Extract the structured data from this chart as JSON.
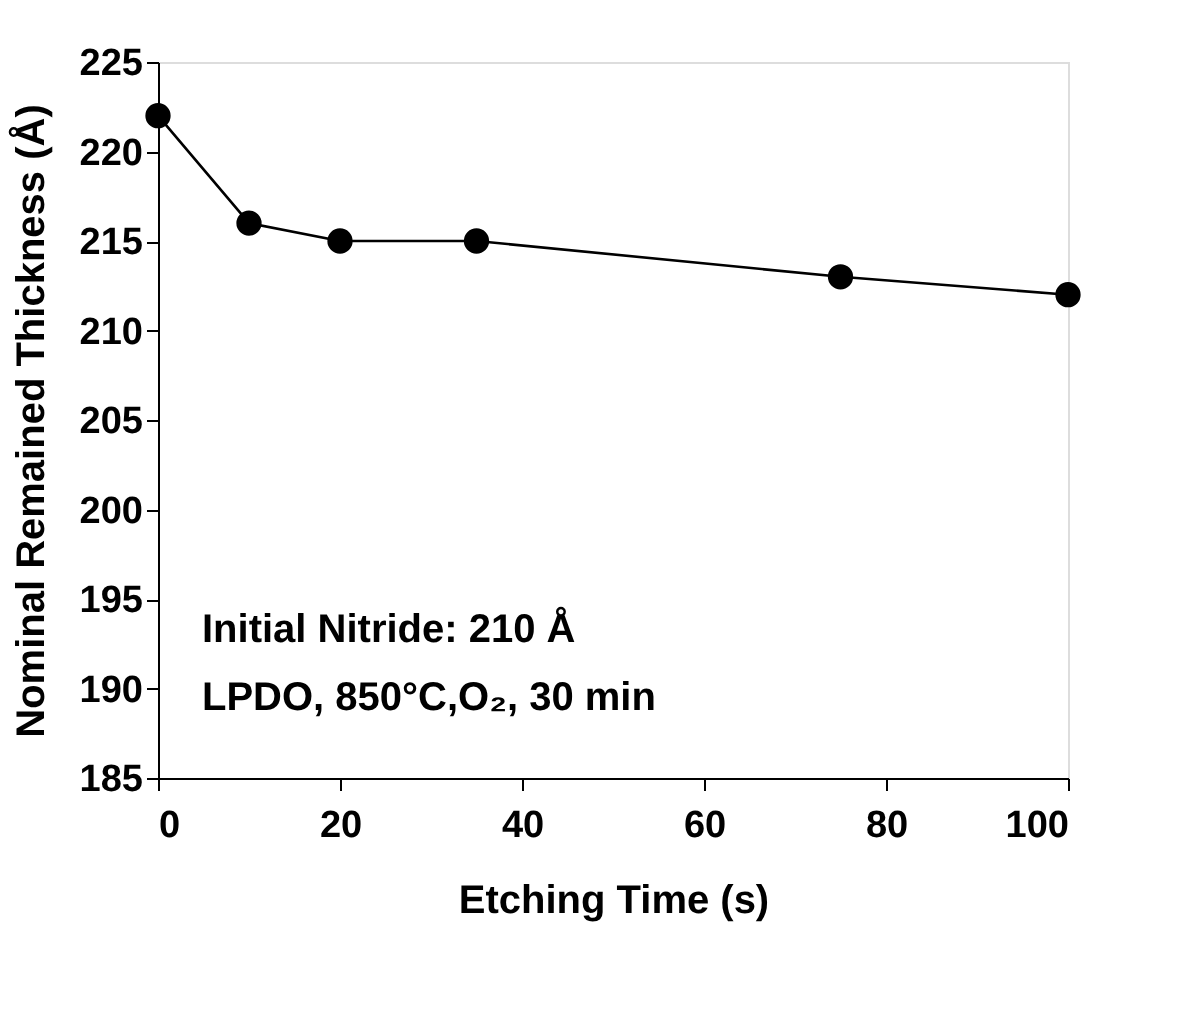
{
  "chart_data": {
    "type": "line",
    "xlabel": "Etching Time (s)",
    "ylabel": "Nominal Remained Thickness (Å)",
    "x": [
      0,
      10,
      20,
      35,
      75,
      100
    ],
    "series": [
      {
        "color": "#000000",
        "values": [
          222,
          216,
          215,
          215,
          213,
          212
        ]
      }
    ],
    "xlim": [
      0,
      100
    ],
    "xticks": [
      0,
      20,
      40,
      60,
      80,
      100
    ],
    "ylim": [
      185,
      225
    ],
    "yticks": [
      185,
      190,
      195,
      200,
      205,
      210,
      215,
      220,
      225
    ],
    "marker": "circle",
    "line_style": "solid",
    "grid": false,
    "legend": false,
    "annotations": [
      "Initial Nitride: 210 Å",
      "LPDO, 850°C,O₂, 30 min"
    ]
  }
}
